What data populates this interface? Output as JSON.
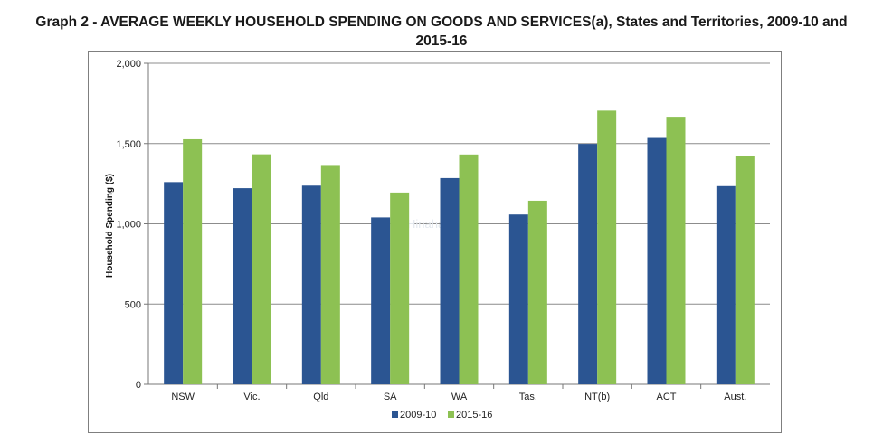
{
  "title_line1": "Graph 2 - AVERAGE WEEKLY HOUSEHOLD SPENDING ON GOODS AND SERVICES(a), States and Territories, 2009-10 and",
  "title_line2": "2015-16",
  "watermark": "Hinahan",
  "chart_data": {
    "type": "bar",
    "title": "Graph 2 - AVERAGE WEEKLY HOUSEHOLD SPENDING ON GOODS AND SERVICES(a), States and Territories, 2009-10 and 2015-16",
    "xlabel": "",
    "ylabel": "Household Spending ($)",
    "ylim": [
      0,
      2000
    ],
    "yticks": [
      0,
      500,
      1000,
      1500,
      2000
    ],
    "ytick_labels": [
      "0",
      "500",
      "1,000",
      "1,500",
      "2,000"
    ],
    "grid": true,
    "legend_position": "bottom",
    "categories": [
      "NSW",
      "Vic.",
      "Qld",
      "SA",
      "WA",
      "Tas.",
      "NT(b)",
      "ACT",
      "Aust."
    ],
    "series": [
      {
        "name": "2009-10",
        "color": "#2b5592",
        "values": [
          1260,
          1222,
          1238,
          1040,
          1285,
          1058,
          1498,
          1535,
          1235
        ]
      },
      {
        "name": "2015-16",
        "color": "#8dc153",
        "values": [
          1527,
          1433,
          1361,
          1195,
          1432,
          1144,
          1705,
          1667,
          1425
        ]
      }
    ]
  }
}
